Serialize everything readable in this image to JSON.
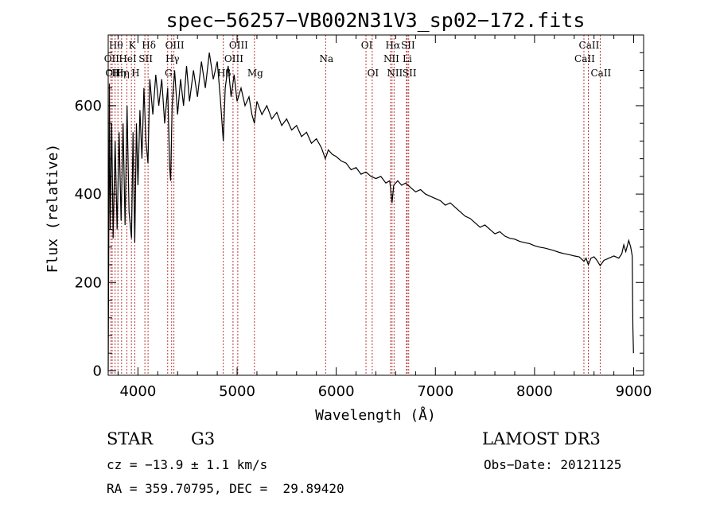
{
  "chart_data": {
    "type": "line",
    "title": "spec−56257−VB002N31V3_sp02−172.fits",
    "xlabel": "Wavelength (Å)",
    "ylabel": "Flux (relative)",
    "xlim": [
      3700,
      9100
    ],
    "ylim": [
      -10,
      760
    ],
    "xticks": [
      4000,
      5000,
      6000,
      7000,
      8000,
      9000
    ],
    "yticks": [
      0,
      200,
      400,
      600
    ],
    "spectrum_points": [
      [
        3700,
        0
      ],
      [
        3705,
        240
      ],
      [
        3712,
        650
      ],
      [
        3720,
        320
      ],
      [
        3735,
        560
      ],
      [
        3750,
        300
      ],
      [
        3770,
        520
      ],
      [
        3790,
        320
      ],
      [
        3810,
        540
      ],
      [
        3830,
        340
      ],
      [
        3850,
        560
      ],
      [
        3870,
        330
      ],
      [
        3890,
        600
      ],
      [
        3910,
        360
      ],
      [
        3935,
        300
      ],
      [
        3950,
        540
      ],
      [
        3968,
        290
      ],
      [
        3985,
        560
      ],
      [
        4000,
        420
      ],
      [
        4020,
        590
      ],
      [
        4040,
        480
      ],
      [
        4060,
        640
      ],
      [
        4080,
        520
      ],
      [
        4101,
        470
      ],
      [
        4120,
        660
      ],
      [
        4150,
        580
      ],
      [
        4180,
        670
      ],
      [
        4210,
        600
      ],
      [
        4240,
        660
      ],
      [
        4270,
        560
      ],
      [
        4300,
        640
      ],
      [
        4320,
        460
      ],
      [
        4330,
        430
      ],
      [
        4345,
        600
      ],
      [
        4370,
        680
      ],
      [
        4400,
        580
      ],
      [
        4430,
        660
      ],
      [
        4460,
        600
      ],
      [
        4490,
        690
      ],
      [
        4520,
        610
      ],
      [
        4560,
        680
      ],
      [
        4600,
        620
      ],
      [
        4640,
        700
      ],
      [
        4680,
        640
      ],
      [
        4720,
        720
      ],
      [
        4760,
        660
      ],
      [
        4800,
        700
      ],
      [
        4830,
        620
      ],
      [
        4861,
        520
      ],
      [
        4880,
        640
      ],
      [
        4910,
        690
      ],
      [
        4940,
        620
      ],
      [
        4970,
        670
      ],
      [
        5000,
        610
      ],
      [
        5040,
        640
      ],
      [
        5080,
        600
      ],
      [
        5120,
        620
      ],
      [
        5150,
        580
      ],
      [
        5175,
        560
      ],
      [
        5200,
        610
      ],
      [
        5250,
        580
      ],
      [
        5300,
        600
      ],
      [
        5350,
        570
      ],
      [
        5400,
        585
      ],
      [
        5450,
        555
      ],
      [
        5500,
        570
      ],
      [
        5550,
        545
      ],
      [
        5600,
        555
      ],
      [
        5650,
        530
      ],
      [
        5700,
        540
      ],
      [
        5750,
        515
      ],
      [
        5800,
        525
      ],
      [
        5850,
        505
      ],
      [
        5890,
        480
      ],
      [
        5920,
        500
      ],
      [
        5960,
        490
      ],
      [
        6000,
        485
      ],
      [
        6050,
        475
      ],
      [
        6100,
        470
      ],
      [
        6150,
        455
      ],
      [
        6200,
        460
      ],
      [
        6250,
        445
      ],
      [
        6300,
        450
      ],
      [
        6350,
        440
      ],
      [
        6400,
        435
      ],
      [
        6450,
        440
      ],
      [
        6500,
        425
      ],
      [
        6540,
        430
      ],
      [
        6563,
        380
      ],
      [
        6580,
        420
      ],
      [
        6620,
        430
      ],
      [
        6660,
        420
      ],
      [
        6700,
        425
      ],
      [
        6750,
        415
      ],
      [
        6800,
        405
      ],
      [
        6850,
        410
      ],
      [
        6900,
        400
      ],
      [
        6950,
        395
      ],
      [
        7000,
        390
      ],
      [
        7050,
        385
      ],
      [
        7100,
        375
      ],
      [
        7150,
        380
      ],
      [
        7200,
        370
      ],
      [
        7250,
        360
      ],
      [
        7300,
        350
      ],
      [
        7350,
        345
      ],
      [
        7400,
        335
      ],
      [
        7450,
        325
      ],
      [
        7500,
        330
      ],
      [
        7550,
        320
      ],
      [
        7600,
        310
      ],
      [
        7650,
        315
      ],
      [
        7700,
        305
      ],
      [
        7750,
        300
      ],
      [
        7800,
        298
      ],
      [
        7850,
        293
      ],
      [
        7900,
        290
      ],
      [
        7950,
        288
      ],
      [
        8000,
        283
      ],
      [
        8050,
        280
      ],
      [
        8100,
        278
      ],
      [
        8150,
        275
      ],
      [
        8200,
        272
      ],
      [
        8250,
        268
      ],
      [
        8300,
        265
      ],
      [
        8350,
        263
      ],
      [
        8400,
        260
      ],
      [
        8450,
        258
      ],
      [
        8498,
        248
      ],
      [
        8520,
        255
      ],
      [
        8542,
        240
      ],
      [
        8570,
        255
      ],
      [
        8600,
        258
      ],
      [
        8630,
        250
      ],
      [
        8662,
        238
      ],
      [
        8700,
        250
      ],
      [
        8750,
        255
      ],
      [
        8800,
        260
      ],
      [
        8850,
        255
      ],
      [
        8880,
        265
      ],
      [
        8900,
        285
      ],
      [
        8920,
        270
      ],
      [
        8950,
        295
      ],
      [
        8970,
        280
      ],
      [
        8985,
        260
      ],
      [
        8992,
        100
      ],
      [
        8998,
        40
      ]
    ],
    "lines": [
      {
        "wave": 3727,
        "label": "OII",
        "row": 2
      },
      {
        "wave": 3740,
        "label": "OII",
        "row": 3
      },
      {
        "wave": 3770,
        "label": "Hθ",
        "row": 1
      },
      {
        "wave": 3798,
        "label": "Hη",
        "row": 3
      },
      {
        "wave": 3835,
        "label": "Hη",
        "row": 3
      },
      {
        "wave": 3889,
        "label": "HeI",
        "row": 2
      },
      {
        "wave": 3934,
        "label": "K",
        "row": 1
      },
      {
        "wave": 3968,
        "label": "H",
        "row": 3
      },
      {
        "wave": 4070,
        "label": "SII",
        "row": 2
      },
      {
        "wave": 4102,
        "label": "Hδ",
        "row": 1
      },
      {
        "wave": 4300,
        "label": "G",
        "row": 3
      },
      {
        "wave": 4340,
        "label": "Hγ",
        "row": 2
      },
      {
        "wave": 4363,
        "label": "OIII",
        "row": 1
      },
      {
        "wave": 4861,
        "label": "Hβ",
        "row": 3
      },
      {
        "wave": 4959,
        "label": "OIII",
        "row": 2
      },
      {
        "wave": 5007,
        "label": "OIII",
        "row": 1
      },
      {
        "wave": 5175,
        "label": "Mg",
        "row": 3
      },
      {
        "wave": 5893,
        "label": "Na",
        "row": 2
      },
      {
        "wave": 6300,
        "label": "OI",
        "row": 1
      },
      {
        "wave": 6363,
        "label": "OI",
        "row": 3
      },
      {
        "wave": 6548,
        "label": "NII",
        "row": 2
      },
      {
        "wave": 6563,
        "label": "Hα",
        "row": 1
      },
      {
        "wave": 6583,
        "label": "NII",
        "row": 3
      },
      {
        "wave": 6708,
        "label": "Li",
        "row": 2
      },
      {
        "wave": 6716,
        "label": "SII",
        "row": 1
      },
      {
        "wave": 6731,
        "label": "SII",
        "row": 3
      },
      {
        "wave": 8498,
        "label": "CaII",
        "row": 2
      },
      {
        "wave": 8542,
        "label": "CaII",
        "row": 1
      },
      {
        "wave": 8662,
        "label": "CaII",
        "row": 3
      }
    ]
  },
  "info": {
    "object_class": "STAR",
    "subclass": "G3",
    "survey": "LAMOST DR3",
    "cz": "cz = −13.9 ± 1.1 km/s",
    "obs_date": "Obs−Date: 20121125",
    "radec": "RA = 359.70795, DEC =  29.89420"
  },
  "colors": {
    "spectrum": "#000000",
    "line_marker": "#b22222",
    "axes": "#000000"
  }
}
